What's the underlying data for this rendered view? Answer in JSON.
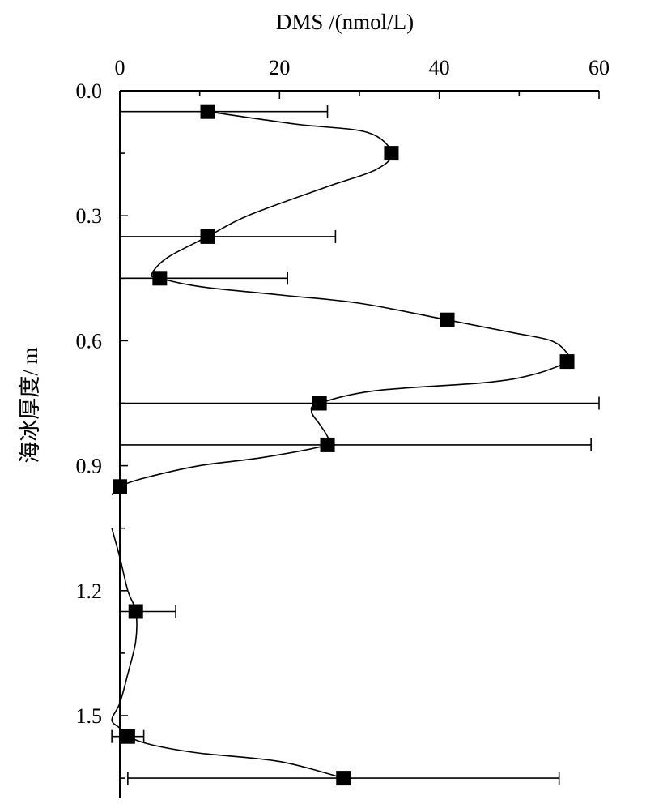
{
  "chart_data": {
    "type": "line",
    "xlabel": "DMS /(nmol/L)",
    "ylabel": "海冰厚度/ m",
    "xlim": [
      0,
      60
    ],
    "ylim": [
      0,
      1.7
    ],
    "y_inverted": true,
    "x_axis_position": "top",
    "x_ticks": [
      0,
      20,
      40,
      60
    ],
    "x_tick_labels": [
      "0",
      "20",
      "40",
      "60"
    ],
    "x_minor_ticks": [
      10,
      30,
      50
    ],
    "y_ticks": [
      0.0,
      0.3,
      0.6,
      0.9,
      1.2,
      1.5
    ],
    "y_tick_labels": [
      "0.0",
      "0.3",
      "0.6",
      "0.9",
      "1.2",
      "1.5"
    ],
    "y_minor_ticks": [
      0.15,
      0.45,
      0.75,
      1.05,
      1.35,
      1.65
    ],
    "grid": false,
    "points": [
      {
        "depth": 0.05,
        "dms": 11,
        "err_low": 0,
        "err_high": 26
      },
      {
        "depth": 0.15,
        "dms": 34
      },
      {
        "depth": 0.35,
        "dms": 11,
        "err_low": 0,
        "err_high": 27
      },
      {
        "depth": 0.45,
        "dms": 5,
        "err_low": 0,
        "err_high": 21
      },
      {
        "depth": 0.55,
        "dms": 41
      },
      {
        "depth": 0.65,
        "dms": 56
      },
      {
        "depth": 0.75,
        "dms": 25,
        "err_low": 0,
        "err_high": 60
      },
      {
        "depth": 0.85,
        "dms": 26,
        "err_low": 0,
        "err_high": 59
      },
      {
        "depth": 0.95,
        "dms": 0
      },
      {
        "depth": 1.25,
        "dms": 2,
        "err_low": 0,
        "err_high": 7
      },
      {
        "depth": 1.55,
        "dms": 1,
        "err_low": -1,
        "err_high": 3
      },
      {
        "depth": 1.65,
        "dms": 28,
        "err_low": 1,
        "err_high": 55
      }
    ],
    "curves": [
      {
        "segment": "upper",
        "points": [
          [
            11,
            0.05
          ],
          [
            22,
            0.08
          ],
          [
            31,
            0.1
          ],
          [
            34,
            0.15
          ],
          [
            32,
            0.19
          ],
          [
            26,
            0.23
          ],
          [
            16,
            0.3
          ],
          [
            11,
            0.35
          ],
          [
            6,
            0.4
          ],
          [
            4,
            0.44
          ],
          [
            5,
            0.45
          ],
          [
            10,
            0.47
          ],
          [
            20,
            0.49
          ],
          [
            30,
            0.51
          ],
          [
            41,
            0.55
          ],
          [
            49,
            0.58
          ],
          [
            54,
            0.6
          ],
          [
            56,
            0.63
          ],
          [
            56,
            0.65
          ],
          [
            52,
            0.68
          ],
          [
            46,
            0.7
          ],
          [
            32,
            0.72
          ],
          [
            25,
            0.75
          ],
          [
            24,
            0.77
          ],
          [
            25,
            0.8
          ],
          [
            26,
            0.83
          ],
          [
            26,
            0.85
          ],
          [
            18,
            0.88
          ],
          [
            10,
            0.9
          ],
          [
            3,
            0.93
          ],
          [
            0,
            0.95
          ],
          [
            -1,
            0.97
          ]
        ]
      },
      {
        "segment": "lower",
        "points": [
          [
            -1,
            1.05
          ],
          [
            0,
            1.12
          ],
          [
            1,
            1.2
          ],
          [
            2,
            1.25
          ],
          [
            2,
            1.32
          ],
          [
            1,
            1.4
          ],
          [
            0,
            1.47
          ],
          [
            -1,
            1.51
          ],
          [
            0,
            1.53
          ],
          [
            1,
            1.55
          ],
          [
            4,
            1.57
          ],
          [
            10,
            1.59
          ],
          [
            20,
            1.61
          ],
          [
            28,
            1.65
          ]
        ]
      }
    ]
  }
}
